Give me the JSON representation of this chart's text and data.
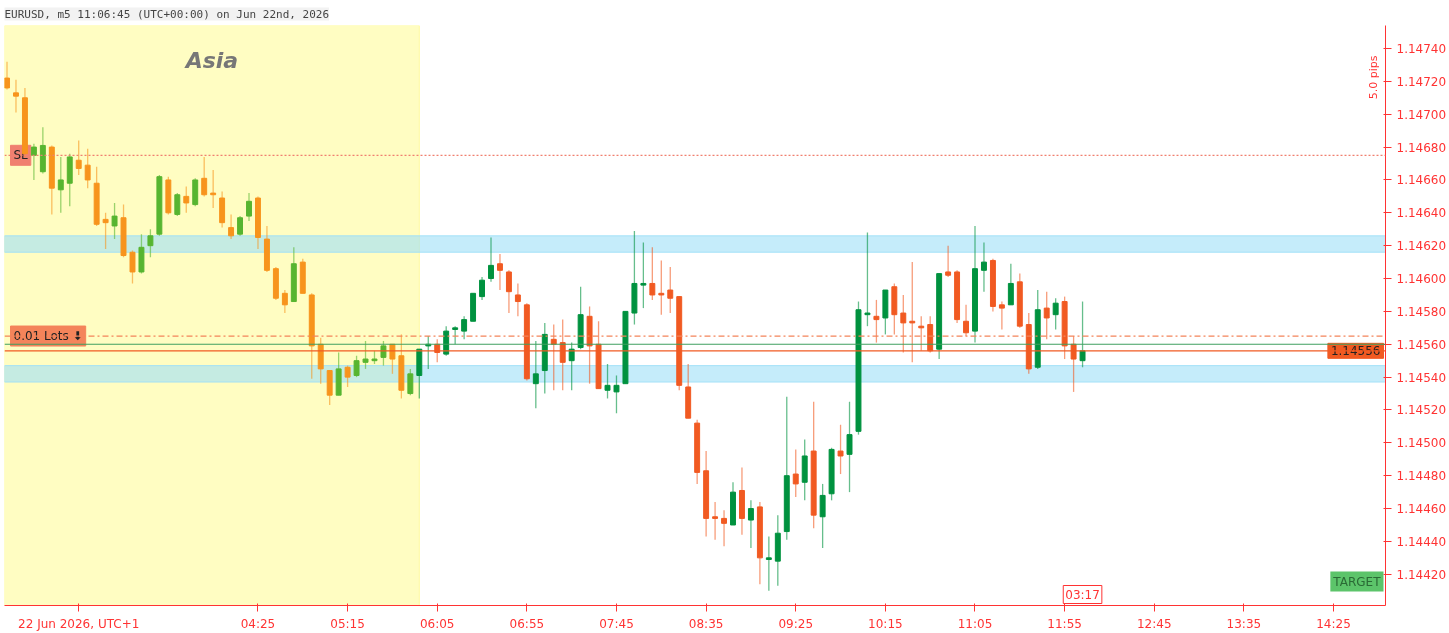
{
  "chart_data": {
    "type": "candlestick",
    "title": "EURUSD, m5 11:06:45 (UTC+00:00) on Jun 22nd, 2026",
    "x": [
      2.08333,
      2.16667,
      2.25,
      2.33333,
      2.41667,
      2.5,
      2.58333,
      2.66667,
      2.75,
      2.83333,
      2.91667,
      3,
      3.08333,
      3.16667,
      3.25,
      3.33333,
      3.41667,
      3.5,
      3.58333,
      3.66667,
      3.75,
      3.83333,
      3.91667,
      4,
      4.08333,
      4.16667,
      4.25,
      4.33333,
      4.41667,
      4.5,
      4.58333,
      4.66667,
      4.75,
      4.83333,
      4.91667,
      5,
      5.08333,
      5.16667,
      5.25,
      5.33333,
      5.41667,
      5.5,
      5.58333,
      5.66667,
      5.75,
      5.83333,
      5.91667,
      6,
      6.08333,
      6.16667,
      6.25,
      6.33333,
      6.41667,
      6.5,
      6.58333,
      6.66667,
      6.75,
      6.83333,
      6.91667,
      7,
      7.08333,
      7.16667,
      7.25,
      7.33333,
      7.41667,
      7.5,
      7.58333,
      7.66667,
      7.75,
      7.83333,
      7.91667,
      8,
      8.08333,
      8.16667,
      8.25,
      8.33333,
      8.41667,
      8.5,
      8.58333,
      8.66667,
      8.75,
      8.83333,
      8.91667,
      9,
      9.08333,
      9.16667,
      9.25,
      9.33333,
      9.41667,
      9.5,
      9.58333,
      9.66667,
      9.75,
      9.83333,
      9.91667,
      10,
      10.08333,
      10.16667,
      10.25,
      10.33333,
      10.41667,
      10.5,
      10.58333,
      10.66667,
      10.75,
      10.83333,
      10.91667,
      11,
      11.08333,
      11.16667,
      11.25,
      11.33333,
      11.41667,
      11.5,
      11.58333,
      11.66667,
      11.75,
      11.83333,
      11.91667,
      12,
      12.08333
    ],
    "ohlc": [
      [
        1.14722,
        1.14732,
        1.14715,
        1.14716
      ],
      [
        1.14713,
        1.14721,
        1.14701,
        1.14711
      ],
      [
        1.1471,
        1.14716,
        1.14674,
        1.14676
      ],
      [
        1.14675,
        1.14682,
        1.1466,
        1.1468
      ],
      [
        1.14665,
        1.14692,
        1.14664,
        1.14681
      ],
      [
        1.1468,
        1.14681,
        1.14639,
        1.14655
      ],
      [
        1.14654,
        1.14674,
        1.1464,
        1.1466
      ],
      [
        1.14658,
        1.14676,
        1.14644,
        1.14674
      ],
      [
        1.14672,
        1.14684,
        1.14663,
        1.14667
      ],
      [
        1.14669,
        1.14679,
        1.14655,
        1.1466
      ],
      [
        1.14658,
        1.14668,
        1.14632,
        1.14633
      ],
      [
        1.14636,
        1.1464,
        1.14618,
        1.14634
      ],
      [
        1.14632,
        1.14646,
        1.14624,
        1.14638
      ],
      [
        1.14637,
        1.14645,
        1.14613,
        1.14614
      ],
      [
        1.14616,
        1.14617,
        1.14597,
        1.14604
      ],
      [
        1.14604,
        1.14627,
        1.14603,
        1.14619
      ],
      [
        1.1462,
        1.1463,
        1.14613,
        1.14626
      ],
      [
        1.14627,
        1.14663,
        1.14626,
        1.14662
      ],
      [
        1.1466,
        1.14662,
        1.14639,
        1.1464
      ],
      [
        1.14639,
        1.14652,
        1.14638,
        1.14651
      ],
      [
        1.1465,
        1.14656,
        1.1464,
        1.14646
      ],
      [
        1.14645,
        1.14661,
        1.14644,
        1.1466
      ],
      [
        1.14661,
        1.14674,
        1.1465,
        1.14651
      ],
      [
        1.14652,
        1.14666,
        1.14643,
        1.14651
      ],
      [
        1.14649,
        1.14653,
        1.14631,
        1.14634
      ],
      [
        1.14631,
        1.14639,
        1.14624,
        1.14626
      ],
      [
        1.14627,
        1.14638,
        1.14626,
        1.14637
      ],
      [
        1.14638,
        1.14652,
        1.14635,
        1.14647
      ],
      [
        1.14649,
        1.1465,
        1.14618,
        1.14625
      ],
      [
        1.14624,
        1.14632,
        1.14604,
        1.14605
      ],
      [
        1.14606,
        1.14607,
        1.14587,
        1.14588
      ],
      [
        1.14591,
        1.14593,
        1.14579,
        1.14584
      ],
      [
        1.14586,
        1.14619,
        1.14586,
        1.14609
      ],
      [
        1.1461,
        1.14612,
        1.14591,
        1.14591
      ],
      [
        1.1459,
        1.14591,
        1.14539,
        1.14559
      ],
      [
        1.1456,
        1.14564,
        1.14536,
        1.14545
      ],
      [
        1.14544,
        1.14544,
        1.14523,
        1.14529
      ],
      [
        1.14529,
        1.14555,
        1.14529,
        1.14545
      ],
      [
        1.14546,
        1.14547,
        1.14534,
        1.1454
      ],
      [
        1.14541,
        1.14553,
        1.1454,
        1.1455
      ],
      [
        1.14549,
        1.14562,
        1.14545,
        1.14551
      ],
      [
        1.1455,
        1.14556,
        1.14548,
        1.14551
      ],
      [
        1.14552,
        1.14562,
        1.14547,
        1.14559
      ],
      [
        1.1456,
        1.1456,
        1.14542,
        1.14551
      ],
      [
        1.14553,
        1.14566,
        1.14527,
        1.14532
      ],
      [
        1.1453,
        1.14545,
        1.14529,
        1.14542
      ],
      [
        1.14541,
        1.14557,
        1.14527,
        1.14557
      ],
      [
        1.14559,
        1.14565,
        1.14545,
        1.1456
      ],
      [
        1.1456,
        1.14563,
        1.14549,
        1.14555
      ],
      [
        1.14554,
        1.14571,
        1.14553,
        1.14568
      ],
      [
        1.14569,
        1.14571,
        1.1456,
        1.1457
      ],
      [
        1.14568,
        1.14577,
        1.14563,
        1.14575
      ],
      [
        1.14574,
        1.14591,
        1.14574,
        1.14591
      ],
      [
        1.14589,
        1.14601,
        1.14587,
        1.14599
      ],
      [
        1.146,
        1.14625,
        1.14598,
        1.14608
      ],
      [
        1.14609,
        1.14615,
        1.14593,
        1.14605
      ],
      [
        1.14604,
        1.14605,
        1.14579,
        1.14592
      ],
      [
        1.1459,
        1.14597,
        1.14577,
        1.14586
      ],
      [
        1.14584,
        1.14585,
        1.14538,
        1.14539
      ],
      [
        1.14536,
        1.14562,
        1.14521,
        1.14542
      ],
      [
        1.14544,
        1.14573,
        1.1453,
        1.14566
      ],
      [
        1.14563,
        1.14572,
        1.14532,
        1.1456
      ],
      [
        1.14561,
        1.14575,
        1.14532,
        1.14549
      ],
      [
        1.1455,
        1.14561,
        1.14532,
        1.14557
      ],
      [
        1.14558,
        1.14595,
        1.14557,
        1.14578
      ],
      [
        1.14577,
        1.14583,
        1.14536,
        1.14559
      ],
      [
        1.1456,
        1.14574,
        1.14533,
        1.14533
      ],
      [
        1.14532,
        1.14548,
        1.14527,
        1.14535
      ],
      [
        1.14531,
        1.14541,
        1.14518,
        1.14535
      ],
      [
        1.14536,
        1.1458,
        1.14536,
        1.1458
      ],
      [
        1.14579,
        1.14629,
        1.14572,
        1.14597
      ],
      [
        1.14596,
        1.14622,
        1.14582,
        1.14597
      ],
      [
        1.14597,
        1.14619,
        1.14587,
        1.1459
      ],
      [
        1.14591,
        1.14611,
        1.14578,
        1.1459
      ],
      [
        1.14593,
        1.14607,
        1.14579,
        1.14588
      ],
      [
        1.14589,
        1.14589,
        1.14532,
        1.14535
      ],
      [
        1.14534,
        1.14548,
        1.14515,
        1.14515
      ],
      [
        1.14512,
        1.14514,
        1.14475,
        1.14482
      ],
      [
        1.14483,
        1.14495,
        1.14443,
        1.14454
      ],
      [
        1.14455,
        1.14464,
        1.14441,
        1.14454
      ],
      [
        1.14454,
        1.14459,
        1.14437,
        1.14451
      ],
      [
        1.1445,
        1.14476,
        1.1445,
        1.1447
      ],
      [
        1.14471,
        1.14485,
        1.14444,
        1.14454
      ],
      [
        1.14453,
        1.14465,
        1.14436,
        1.1446
      ],
      [
        1.14461,
        1.14464,
        1.14414,
        1.1443
      ],
      [
        1.14429,
        1.14443,
        1.1441,
        1.1443
      ],
      [
        1.14428,
        1.14456,
        1.14413,
        1.14445
      ],
      [
        1.14446,
        1.14528,
        1.14441,
        1.1448
      ],
      [
        1.14481,
        1.14496,
        1.14467,
        1.14475
      ],
      [
        1.14476,
        1.14502,
        1.14465,
        1.14492
      ],
      [
        1.14495,
        1.14525,
        1.14448,
        1.14456
      ],
      [
        1.14455,
        1.14475,
        1.14436,
        1.14468
      ],
      [
        1.14469,
        1.14497,
        1.14465,
        1.14496
      ],
      [
        1.14495,
        1.14511,
        1.14481,
        1.14492
      ],
      [
        1.14493,
        1.14525,
        1.1447,
        1.14505
      ],
      [
        1.14507,
        1.14586,
        1.14505,
        1.14581
      ],
      [
        1.14578,
        1.14628,
        1.14571,
        1.14579
      ],
      [
        1.14577,
        1.14587,
        1.14561,
        1.14575
      ],
      [
        1.14576,
        1.14593,
        1.14566,
        1.14593
      ],
      [
        1.14595,
        1.14597,
        1.14566,
        1.14578
      ],
      [
        1.14579,
        1.1459,
        1.14555,
        1.14573
      ],
      [
        1.14574,
        1.1461,
        1.14549,
        1.14573
      ],
      [
        1.14571,
        1.14577,
        1.14556,
        1.1457
      ],
      [
        1.14572,
        1.14577,
        1.14555,
        1.14556
      ],
      [
        1.14557,
        1.14603,
        1.14551,
        1.14603
      ],
      [
        1.14604,
        1.1462,
        1.14601,
        1.14602
      ],
      [
        1.14604,
        1.14605,
        1.14573,
        1.14575
      ],
      [
        1.14574,
        1.14584,
        1.14565,
        1.14567
      ],
      [
        1.14568,
        1.14632,
        1.14561,
        1.14606
      ],
      [
        1.14605,
        1.14622,
        1.14592,
        1.1461
      ],
      [
        1.14611,
        1.14612,
        1.1458,
        1.14583
      ],
      [
        1.14584,
        1.14586,
        1.14569,
        1.14582
      ],
      [
        1.14584,
        1.14609,
        1.14584,
        1.14597
      ],
      [
        1.14598,
        1.14603,
        1.1457,
        1.14571
      ],
      [
        1.14572,
        1.14579,
        1.14542,
        1.14545
      ],
      [
        1.14546,
        1.14593,
        1.14545,
        1.14581
      ],
      [
        1.14582,
        1.14592,
        1.14563,
        1.14576
      ],
      [
        1.14578,
        1.14588,
        1.14569,
        1.14585
      ],
      [
        1.14586,
        1.14589,
        1.14551,
        1.14559
      ],
      [
        1.1456,
        1.14565,
        1.14531,
        1.14551
      ],
      [
        1.1455,
        1.14586,
        1.14546,
        1.14556
      ]
    ],
    "colors": [
      "#f7941d",
      "#f7941d",
      "#f7941d",
      "#57b530",
      "#57b530",
      "#f7941d",
      "#57b530",
      "#57b530",
      "#f7941d",
      "#f7941d",
      "#f7941d",
      "#f7941d",
      "#57b530",
      "#f7941d",
      "#f7941d",
      "#57b530",
      "#57b530",
      "#57b530",
      "#f7941d",
      "#57b530",
      "#f7941d",
      "#57b530",
      "#f7941d",
      "#f7941d",
      "#f7941d",
      "#f7941d",
      "#57b530",
      "#57b530",
      "#f7941d",
      "#f7941d",
      "#f7941d",
      "#f7941d",
      "#57b530",
      "#f7941d",
      "#f7941d",
      "#f7941d",
      "#f7941d",
      "#57b530",
      "#f7941d",
      "#57b530",
      "#57b530",
      "#57b530",
      "#57b530",
      "#f7941d",
      "#f7941d",
      "#57b530",
      "#00923f",
      "#00923f",
      "#f15a22",
      "#00923f",
      "#00923f",
      "#00923f",
      "#00923f",
      "#00923f",
      "#00923f",
      "#f15a22",
      "#f15a22",
      "#f15a22",
      "#f15a22",
      "#00923f",
      "#00923f",
      "#f15a22",
      "#f15a22",
      "#00923f",
      "#00923f",
      "#f15a22",
      "#f15a22",
      "#00923f",
      "#00923f",
      "#00923f",
      "#00923f",
      "#00923f",
      "#f15a22",
      "#f15a22",
      "#f15a22",
      "#f15a22",
      "#f15a22",
      "#f15a22",
      "#f15a22",
      "#f15a22",
      "#f15a22",
      "#00923f",
      "#f15a22",
      "#00923f",
      "#f15a22",
      "#00923f",
      "#00923f",
      "#00923f",
      "#f15a22",
      "#00923f",
      "#f15a22",
      "#00923f",
      "#00923f",
      "#f15a22",
      "#00923f",
      "#00923f",
      "#00923f",
      "#f15a22",
      "#00923f",
      "#f15a22",
      "#f15a22",
      "#f15a22",
      "#f15a22",
      "#f15a22",
      "#00923f",
      "#f15a22",
      "#f15a22",
      "#f15a22",
      "#00923f",
      "#00923f",
      "#f15a22",
      "#f15a22",
      "#00923f",
      "#f15a22",
      "#f15a22",
      "#00923f",
      "#f15a22",
      "#00923f",
      "#f15a22",
      "#f15a22",
      "#00923f"
    ],
    "xlim": [
      2.06,
      14.9
    ],
    "ylim": [
      1.14401,
      1.14754
    ],
    "xticks": [
      {
        "value": 2.75,
        "label": "22 Jun 2026, UTC+1"
      },
      {
        "value": 4.41667,
        "label": "04:25"
      },
      {
        "value": 5.25,
        "label": "05:15"
      },
      {
        "value": 6.08333,
        "label": "06:05"
      },
      {
        "value": 6.91667,
        "label": "06:55"
      },
      {
        "value": 7.75,
        "label": "07:45"
      },
      {
        "value": 8.58333,
        "label": "08:35"
      },
      {
        "value": 9.41667,
        "label": "09:25"
      },
      {
        "value": 10.25,
        "label": "10:15"
      },
      {
        "value": 11.08333,
        "label": "11:05"
      },
      {
        "value": 11.91667,
        "label": "11:55"
      },
      {
        "value": 12.75,
        "label": "12:45"
      },
      {
        "value": 13.58333,
        "label": "13:35"
      },
      {
        "value": 14.41667,
        "label": "14:25"
      }
    ],
    "yticks": [
      {
        "value": 1.1442,
        "label": "1.14420"
      },
      {
        "value": 1.1444,
        "label": "1.14440"
      },
      {
        "value": 1.1446,
        "label": "1.14460"
      },
      {
        "value": 1.1448,
        "label": "1.14480"
      },
      {
        "value": 1.145,
        "label": "1.14500"
      },
      {
        "value": 1.1452,
        "label": "1.14520"
      },
      {
        "value": 1.1454,
        "label": "1.14540"
      },
      {
        "value": 1.1456,
        "label": "1.14560"
      },
      {
        "value": 1.1458,
        "label": "1.14580"
      },
      {
        "value": 1.146,
        "label": "1.14600"
      },
      {
        "value": 1.1462,
        "label": "1.14620"
      },
      {
        "value": 1.1464,
        "label": "1.14640"
      },
      {
        "value": 1.1466,
        "label": "1.14660"
      },
      {
        "value": 1.1468,
        "label": "1.14680"
      },
      {
        "value": 1.147,
        "label": "1.14700"
      },
      {
        "value": 1.1472,
        "label": "1.14720"
      },
      {
        "value": 1.1474,
        "label": "1.14740"
      }
    ],
    "bands": [
      {
        "axis": "x",
        "from": 2.06,
        "to": 5.91667,
        "label": "Asia",
        "color": "#fffb99"
      },
      {
        "axis": "y",
        "from": 1.14616,
        "to": 1.14626,
        "color": "#9fdff7"
      },
      {
        "axis": "y",
        "from": 1.14537,
        "to": 1.14547,
        "color": "#9fdff7"
      }
    ],
    "ref_lines": [
      {
        "axis": "y",
        "value": 1.14675,
        "label": "SL",
        "color": "#f08070",
        "line_style": "dotted"
      },
      {
        "axis": "y",
        "value": 1.14565,
        "label": "0.01 Lots ⬇",
        "color": "#f4845a",
        "line_style": "dashed"
      },
      {
        "axis": "y",
        "value": 1.1456,
        "label": null,
        "color": "#3f9f5f",
        "line_style": "solid"
      },
      {
        "axis": "y",
        "value": 1.14556,
        "label": "1.14556",
        "color": "#f15a22",
        "line_style": "solid"
      }
    ],
    "annotations": [
      "5.0 pips",
      "03:17",
      "TARGET"
    ]
  }
}
